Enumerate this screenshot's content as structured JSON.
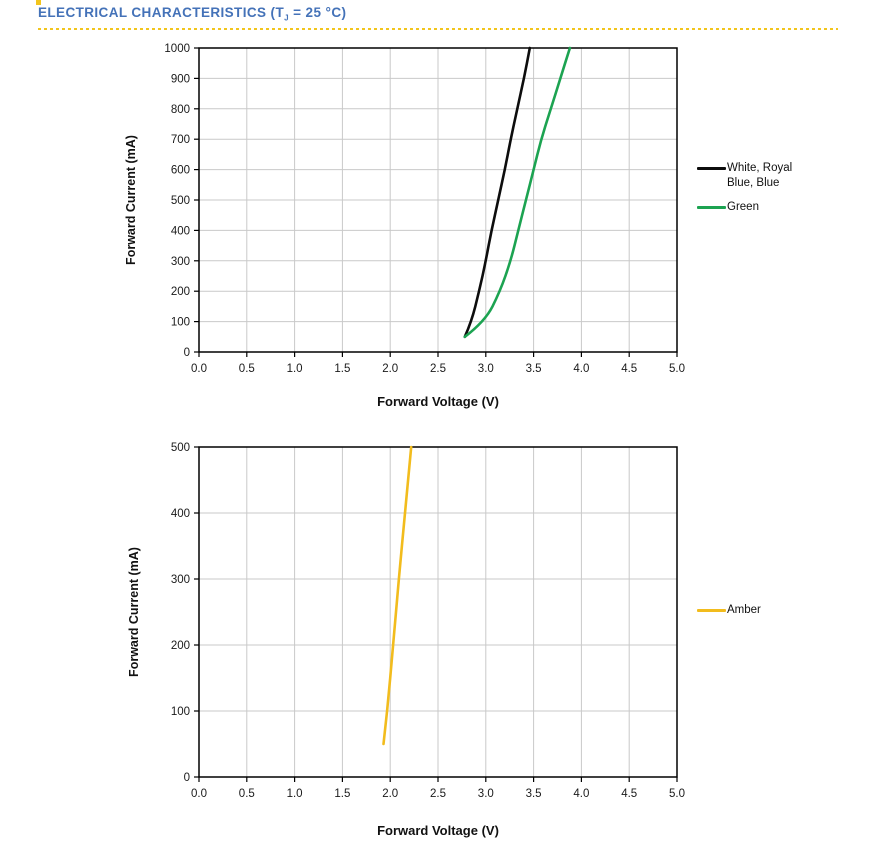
{
  "header": {
    "title_main": "ELECTRICAL CHARACTERISTICS (T",
    "title_sub": "J",
    "title_tail": " = 25 °C)"
  },
  "colors": {
    "accent_blue": "#4472B8",
    "accent_yellow": "#F2C51D",
    "grid": "#C9C9C9",
    "axis": "#000000",
    "tick_label": "#1a1a1a"
  },
  "chart_data": [
    {
      "type": "line",
      "title": "",
      "xlabel": "Forward Voltage (V)",
      "ylabel": "Forward Current (mA)",
      "xlim": [
        0.0,
        5.0
      ],
      "ylim": [
        0,
        1000
      ],
      "xticks": [
        "0.0",
        "0.5",
        "1.0",
        "1.5",
        "2.0",
        "2.5",
        "3.0",
        "3.5",
        "4.0",
        "4.5",
        "5.0"
      ],
      "yticks": [
        0,
        100,
        200,
        300,
        400,
        500,
        600,
        700,
        800,
        900,
        1000
      ],
      "grid": true,
      "legend_position": "right",
      "series": [
        {
          "name": "White, Royal Blue, Blue",
          "color": "#0d0d0d",
          "x": [
            2.78,
            2.85,
            2.93,
            3.0,
            3.06,
            3.13,
            3.2,
            3.26,
            3.33,
            3.4,
            3.46
          ],
          "y": [
            50,
            100,
            200,
            300,
            400,
            500,
            600,
            700,
            800,
            900,
            1000
          ]
        },
        {
          "name": "Green",
          "color": "#1CA351",
          "x": [
            2.78,
            2.99,
            3.15,
            3.26,
            3.34,
            3.42,
            3.5,
            3.58,
            3.68,
            3.78,
            3.88
          ],
          "y": [
            50,
            100,
            200,
            300,
            400,
            500,
            600,
            700,
            800,
            900,
            1000
          ]
        }
      ]
    },
    {
      "type": "line",
      "title": "",
      "xlabel": "Forward Voltage (V)",
      "ylabel": "Forward Current (mA)",
      "xlim": [
        0.0,
        5.0
      ],
      "ylim": [
        0,
        500
      ],
      "xticks": [
        "0.0",
        "0.5",
        "1.0",
        "1.5",
        "2.0",
        "2.5",
        "3.0",
        "3.5",
        "4.0",
        "4.5",
        "5.0"
      ],
      "yticks": [
        0,
        100,
        200,
        300,
        400,
        500
      ],
      "grid": true,
      "legend_position": "right",
      "series": [
        {
          "name": "Amber",
          "color": "#F2BC1D",
          "x": [
            1.93,
            1.97,
            2.03,
            2.09,
            2.155,
            2.22
          ],
          "y": [
            50,
            100,
            200,
            300,
            400,
            500
          ]
        }
      ]
    }
  ]
}
